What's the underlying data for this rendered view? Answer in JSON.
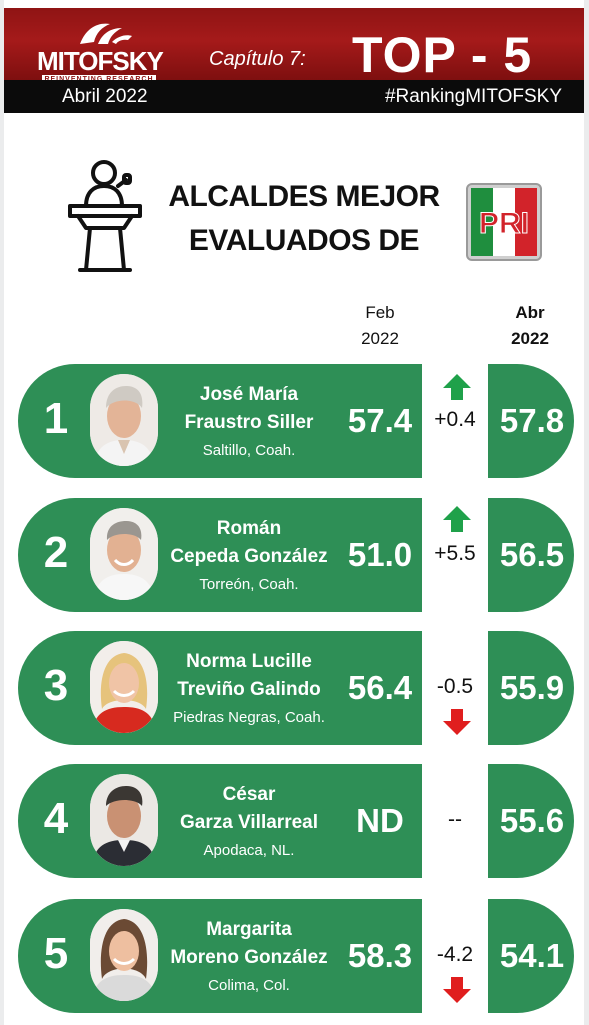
{
  "header": {
    "brand": "MITOFSKY",
    "tagline": "REINVENTING RESEARCH",
    "chapter": "Capítulo 7:",
    "headline": "TOP - 5",
    "date": "Abril 2022",
    "hashtag": "#RankingMITOFSKY"
  },
  "title": {
    "line1": "ALCALDES MEJOR",
    "line2": "EVALUADOS DE",
    "party_logo_text": "PRI"
  },
  "columns": {
    "feb_month": "Feb",
    "feb_year": "2022",
    "abr_month": "Abr",
    "abr_year": "2022"
  },
  "rows": [
    {
      "rank": "1",
      "name1": "José María",
      "name2": "Fraustro Siller",
      "city": "Saltillo, Coah.",
      "feb": "57.4",
      "delta": "+0.4",
      "trend": "up",
      "abr": "57.8"
    },
    {
      "rank": "2",
      "name1": "Román",
      "name2": "Cepeda González",
      "city": "Torreón, Coah.",
      "feb": "51.0",
      "delta": "+5.5",
      "trend": "up",
      "abr": "56.5"
    },
    {
      "rank": "3",
      "name1": "Norma Lucille",
      "name2": "Treviño Galindo",
      "city": "Piedras Negras, Coah.",
      "feb": "56.4",
      "delta": "-0.5",
      "trend": "down",
      "abr": "55.9"
    },
    {
      "rank": "4",
      "name1": "César",
      "name2": "Garza Villarreal",
      "city": "Apodaca, NL.",
      "feb": "ND",
      "delta": "--",
      "trend": "none",
      "abr": "55.6"
    },
    {
      "rank": "5",
      "name1": "Margarita",
      "name2": "Moreno González",
      "city": "Colima, Col.",
      "feb": "58.3",
      "delta": "-4.2",
      "trend": "down",
      "abr": "54.1"
    }
  ],
  "colors": {
    "green": "#2e8f56",
    "red_header": "#8f1414",
    "arrow_up": "#1fa14a",
    "arrow_down": "#e01e1e"
  }
}
